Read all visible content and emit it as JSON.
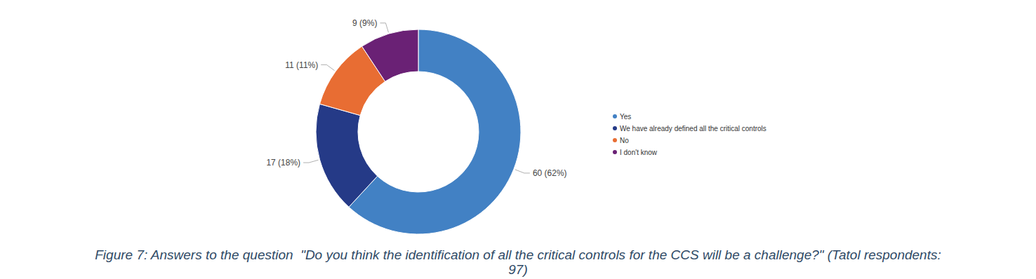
{
  "chart_data": {
    "type": "pie",
    "title": "Figure 7: Answers to the question  \"Do you think the identification of all the critical controls for the CCS will be a challenge?\" (Tatol respondents: 97)",
    "categories": [
      "Yes",
      "We have already defined all the critical controls",
      "No",
      "I don't know"
    ],
    "values": [
      60,
      17,
      11,
      9
    ],
    "value_labels": [
      "60 (62%)",
      "17 (18%)",
      "11 (11%)",
      "9 (9%)"
    ],
    "colors": [
      "#4281c4",
      "#253a87",
      "#e86d33",
      "#6a2175"
    ],
    "data_labels": true,
    "legend": "right"
  }
}
